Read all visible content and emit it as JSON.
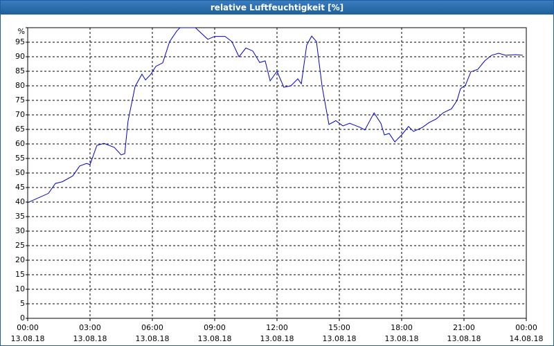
{
  "chart_data": {
    "type": "line",
    "title": "relative Luftfeuchtigkeit [%]",
    "x": [
      0,
      1,
      1.33,
      1.67,
      2.17,
      2.5,
      2.83,
      3,
      3.33,
      3.67,
      4.17,
      4.5,
      4.67,
      4.83,
      5.17,
      5.5,
      5.67,
      5.93,
      6.17,
      6.5,
      6.83,
      7.17,
      7.33,
      8.07,
      8.67,
      9,
      9.5,
      9.83,
      10.17,
      10.5,
      10.83,
      11.17,
      11.43,
      11.67,
      12,
      12.33,
      12.67,
      13,
      13.17,
      13.43,
      13.67,
      13.9,
      14.17,
      14.5,
      14.83,
      15.17,
      15.5,
      16,
      16.23,
      16.67,
      17,
      17.17,
      17.4,
      17.67,
      18,
      18.33,
      18.57,
      19,
      19.33,
      19.67,
      20,
      20.4,
      20.67,
      20.83,
      21.07,
      21.33,
      21.67,
      22,
      22.33,
      22.67,
      23,
      23.5,
      23.83
    ],
    "series": [
      {
        "name": "relative Luftfeuchtigkeit",
        "color": "#0000cc",
        "values": [
          39.8,
          43,
          46.4,
          47,
          49,
          52.4,
          53.3,
          52.9,
          59.5,
          60.2,
          58.8,
          56.2,
          56.7,
          67.9,
          79.8,
          84,
          82,
          84,
          86.7,
          87.9,
          95.2,
          98.8,
          100,
          100,
          96,
          97,
          97,
          95.2,
          90,
          93,
          92,
          88,
          88.6,
          81.7,
          85,
          79.5,
          80,
          82.4,
          80.7,
          94,
          97.1,
          95.2,
          79.8,
          66.7,
          68,
          66.2,
          67.1,
          65.7,
          64.8,
          70.7,
          67.1,
          63.1,
          63.6,
          60.7,
          63.1,
          66,
          64.3,
          65.7,
          67.4,
          68.6,
          70.7,
          72.1,
          75,
          79,
          80.2,
          84.8,
          85.7,
          88.6,
          90.5,
          91.2,
          90.5,
          90.7,
          90.5
        ]
      }
    ],
    "xlim": [
      0,
      24
    ],
    "xticks": [
      {
        "value": 0,
        "label": [
          "00:00",
          "13.08.18"
        ]
      },
      {
        "value": 3,
        "label": [
          "03:00",
          "13.08.18"
        ]
      },
      {
        "value": 6,
        "label": [
          "06:00",
          "13.08.18"
        ]
      },
      {
        "value": 9,
        "label": [
          "09:00",
          "13.08.18"
        ]
      },
      {
        "value": 12,
        "label": [
          "12:00",
          "13.08.18"
        ]
      },
      {
        "value": 15,
        "label": [
          "15:00",
          "13.08.18"
        ]
      },
      {
        "value": 18,
        "label": [
          "18:00",
          "13.08.18"
        ]
      },
      {
        "value": 21,
        "label": [
          "21:00",
          "13.08.18"
        ]
      },
      {
        "value": 24,
        "label": [
          "00:00",
          "14.08.18"
        ]
      }
    ],
    "ylim": [
      0,
      100
    ],
    "yticks": [
      0,
      5,
      10,
      15,
      20,
      25,
      30,
      35,
      40,
      45,
      50,
      55,
      60,
      65,
      70,
      75,
      80,
      85,
      90,
      95,
      {
        "value": 100,
        "label": "%"
      }
    ],
    "grid": true
  }
}
